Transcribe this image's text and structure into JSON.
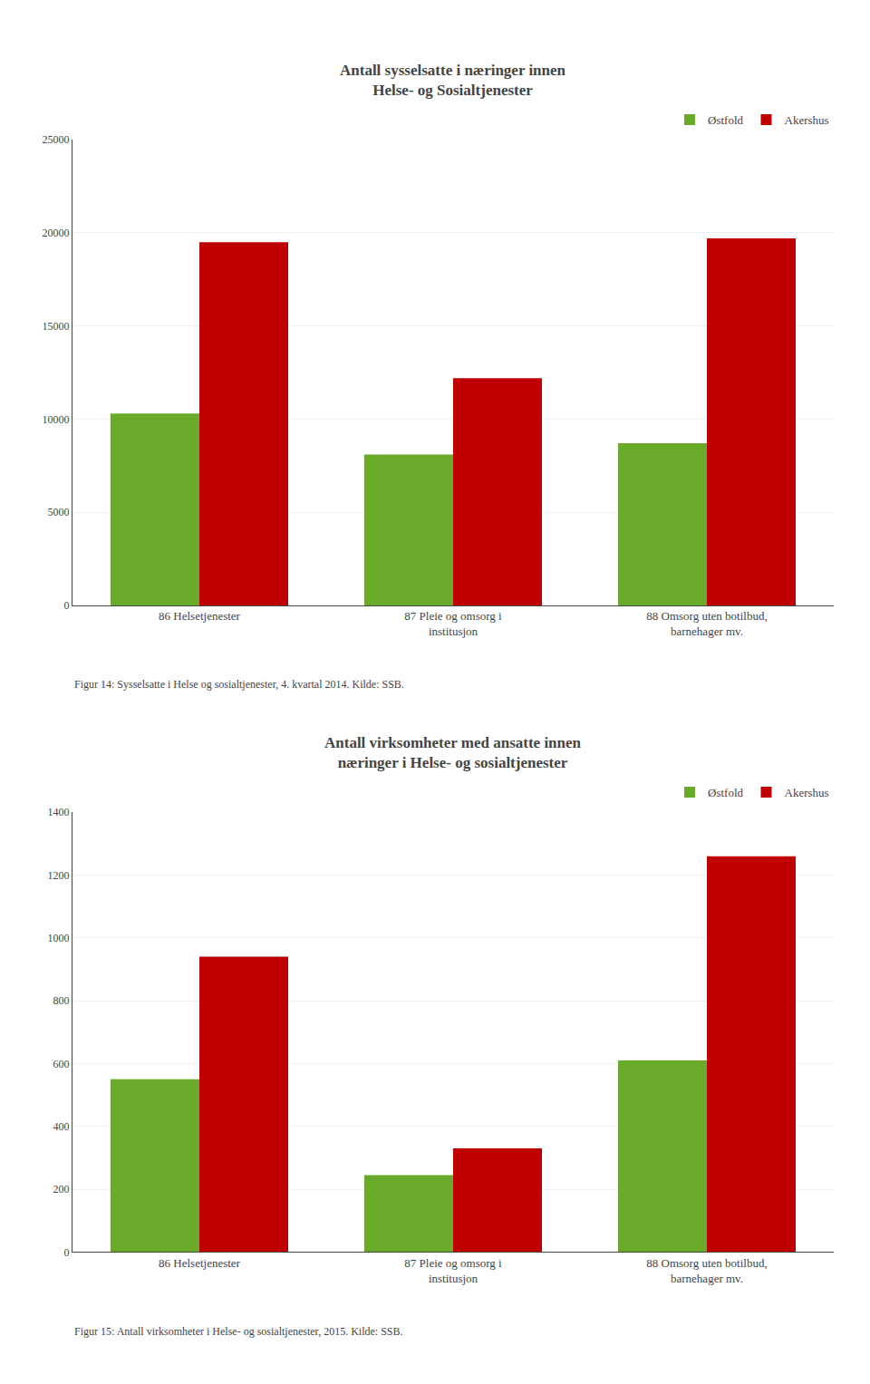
{
  "chart_data": [
    {
      "type": "bar",
      "title": "Antall sysselsatte i næringer innen\nHelse- og Sosialtjenester",
      "categories": [
        "86 Helsetjenester",
        "87 Pleie og omsorg i\ninstitusjon",
        "88 Omsorg uten botilbud,\nbarnehager mv."
      ],
      "series": [
        {
          "name": "Østfold",
          "color": "#6aaa2a",
          "values": [
            10300,
            8100,
            8700
          ]
        },
        {
          "name": "Akershus",
          "color": "#c00000",
          "values": [
            19500,
            12200,
            19700
          ]
        }
      ],
      "ylim": [
        0,
        25000
      ],
      "yticks": [
        0,
        5000,
        10000,
        15000,
        20000,
        25000
      ],
      "grid": true,
      "legend": "upper right",
      "annotations": [
        "Figur 14: Sysselsatte i Helse og sosialtjenester, 4. kvartal 2014. Kilde: SSB."
      ]
    },
    {
      "type": "bar",
      "title": "Antall virksomheter med ansatte innen\nnæringer i Helse- og sosialtjenester",
      "categories": [
        "86 Helsetjenester",
        "87 Pleie og omsorg i\ninstitusjon",
        "88 Omsorg uten botilbud,\nbarnehager mv."
      ],
      "series": [
        {
          "name": "Østfold",
          "color": "#6aaa2a",
          "values": [
            550,
            245,
            610
          ]
        },
        {
          "name": "Akershus",
          "color": "#c00000",
          "values": [
            940,
            330,
            1260
          ]
        }
      ],
      "ylim": [
        0,
        1400
      ],
      "yticks": [
        0,
        200,
        400,
        600,
        800,
        1000,
        1200,
        1400
      ],
      "grid": true,
      "legend": "upper right",
      "annotations": [
        "Figur 15: Antall virksomheter i Helse- og sosialtjenester, 2015. Kilde: SSB."
      ]
    }
  ]
}
